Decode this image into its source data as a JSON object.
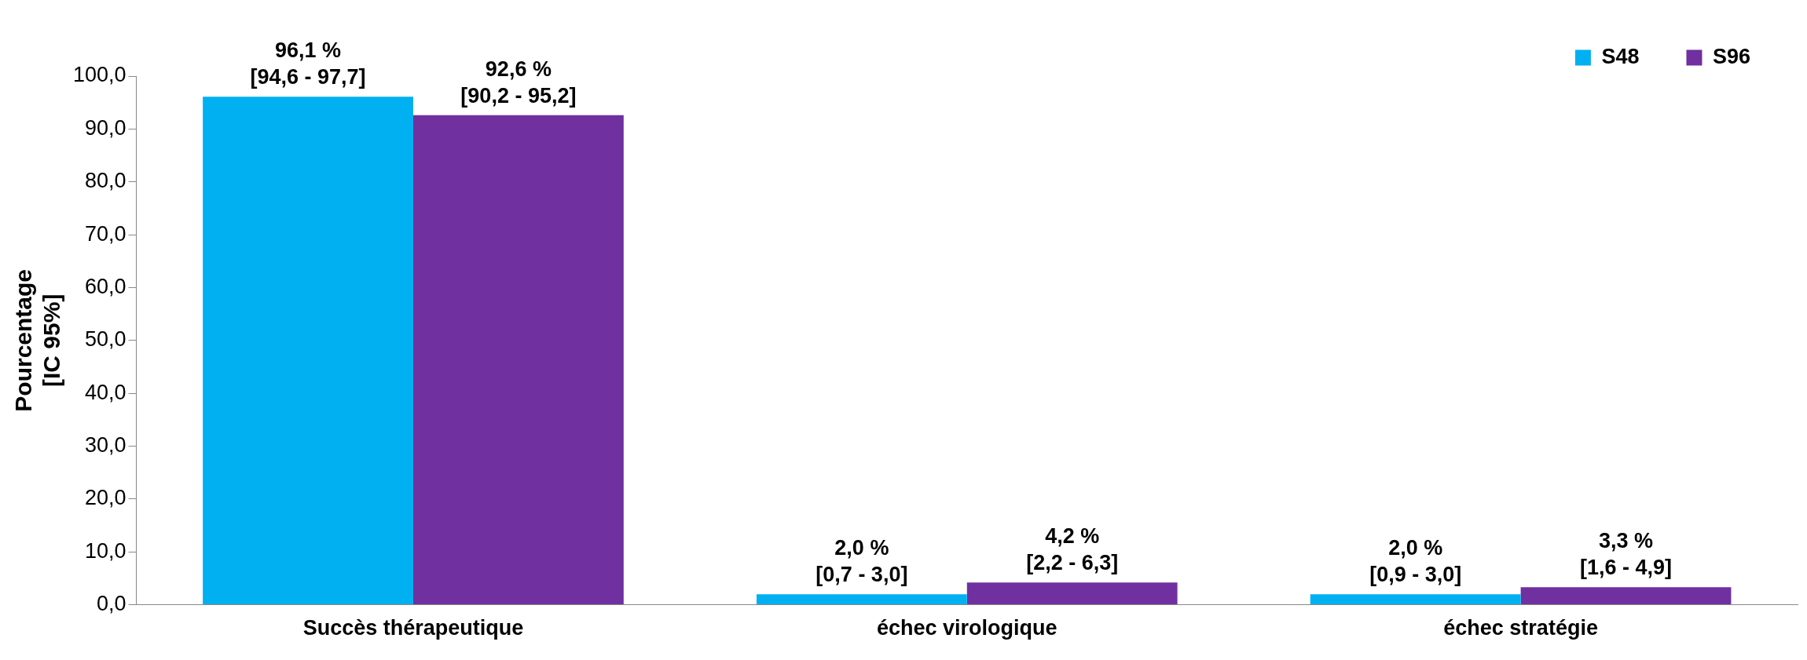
{
  "chart_data": {
    "type": "bar",
    "ylabel": "Pourcentage\n[IC 95%]",
    "categories": [
      "Succès thérapeutique",
      "échec virologique",
      "échec stratégie"
    ],
    "series": [
      {
        "name": "S48",
        "color": "#00b0f0",
        "values": [
          96.1,
          2.0,
          2.0
        ],
        "value_labels": [
          "96,1 %\n[94,6 - 97,7]",
          "2,0 %\n[0,7 - 3,0]",
          "2,0 %\n[0,9 - 3,0]"
        ]
      },
      {
        "name": "S96",
        "color": "#7030a0",
        "values": [
          92.6,
          4.2,
          3.3
        ],
        "value_labels": [
          "92,6 %\n[90,2 - 95,2]",
          "4,2 %\n[2,2 - 6,3]",
          "3,3 %\n[1,6 - 4,9]"
        ]
      }
    ],
    "ylim": [
      0,
      100
    ],
    "yticks": [
      {
        "value": 0,
        "label": "0,0"
      },
      {
        "value": 10,
        "label": "10,0"
      },
      {
        "value": 20,
        "label": "20,0"
      },
      {
        "value": 30,
        "label": "30,0"
      },
      {
        "value": 40,
        "label": "40,0"
      },
      {
        "value": 50,
        "label": "50,0"
      },
      {
        "value": 60,
        "label": "60,0"
      },
      {
        "value": 70,
        "label": "70,0"
      },
      {
        "value": 80,
        "label": "80,0"
      },
      {
        "value": 90,
        "label": "90,0"
      },
      {
        "value": 100,
        "label": "100,0"
      }
    ],
    "grid": false,
    "legend": "top right"
  }
}
